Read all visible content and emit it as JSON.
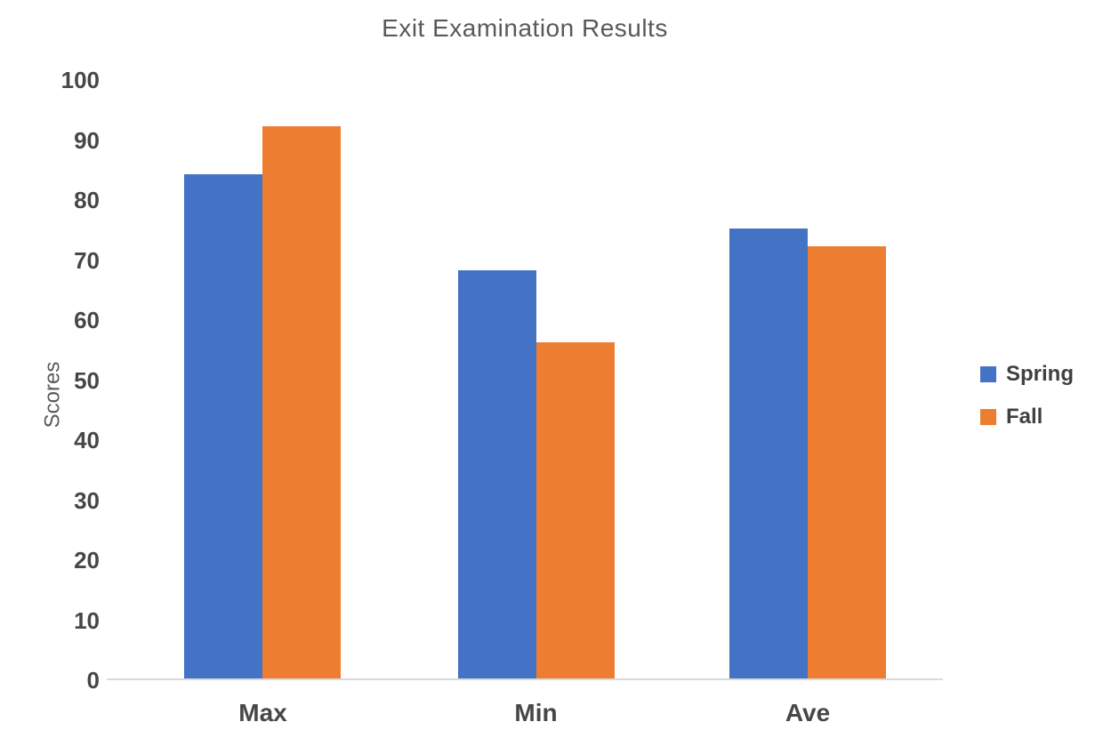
{
  "chart_data": {
    "type": "bar",
    "title": "Exit Examination Results",
    "xlabel": "",
    "ylabel": "Scores",
    "categories": [
      "Max",
      "Min",
      "Ave"
    ],
    "series": [
      {
        "name": "Spring",
        "color": "#4472C4",
        "values": [
          84,
          68,
          75
        ]
      },
      {
        "name": "Fall",
        "color": "#ED7D31",
        "values": [
          92,
          56,
          72
        ]
      }
    ],
    "ylim": [
      0,
      100
    ],
    "yticks": [
      0,
      10,
      20,
      30,
      40,
      50,
      60,
      70,
      80,
      90,
      100
    ],
    "grid": false,
    "legend_position": "right"
  },
  "colors": {
    "title_text": "#595959",
    "axis_tick_text": "#474747",
    "axis_line": "#D9D9D9",
    "legend_text": "#404040",
    "background": "#FFFFFF"
  }
}
